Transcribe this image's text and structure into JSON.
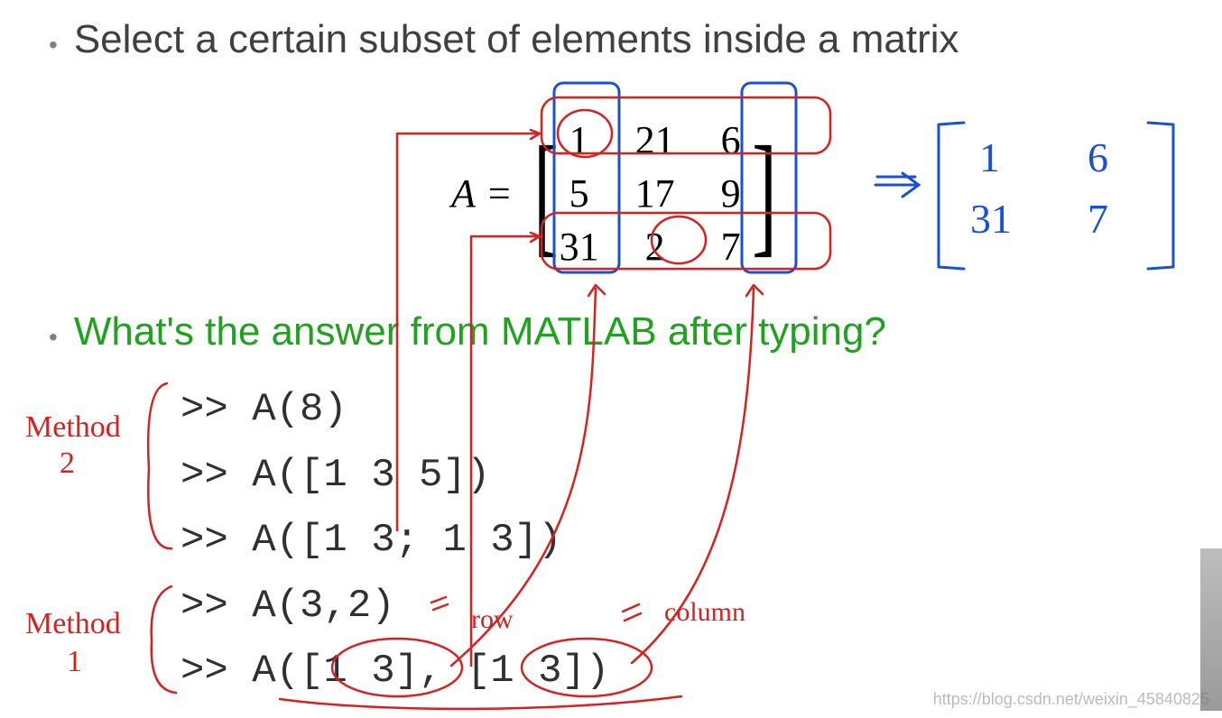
{
  "colors": {
    "title": "#404040",
    "question": "#1fa31f",
    "bullet": "#808080",
    "code": "#303030",
    "ink_red": "#d82020",
    "ink_blue": "#1a4fd8",
    "watermark": "rgba(120,120,120,0.5)",
    "background": "#ffffff"
  },
  "fontsizes": {
    "title": 44,
    "question": 44,
    "code": 44,
    "matrix": 44
  },
  "bullets": {
    "title": "Select a certain subset of elements inside a matrix",
    "question": "What's the answer from MATLAB after typing?"
  },
  "matrix": {
    "name": "A",
    "eq": "=",
    "rows": [
      [
        "1",
        "21",
        "6"
      ],
      [
        "5",
        "17",
        "9"
      ],
      [
        "31",
        "2",
        "7"
      ]
    ]
  },
  "result_matrix_hand": {
    "rows": [
      [
        "1",
        "6"
      ],
      [
        "31",
        "7"
      ]
    ],
    "note": "handwritten in blue to the right with ⇒ arrow"
  },
  "code_lines": [
    ">> A(8)",
    ">> A([1 3 5])",
    ">> A([1 3; 1 3])",
    ">> A(3,2)",
    ">> A([1 3], [1 3])"
  ],
  "hand_labels": {
    "method2": "Method 2",
    "method1": "Method 1",
    "row": "row",
    "column": "column",
    "arrow": "⇒"
  },
  "watermark": "https://blog.csdn.net/weixin_45840825"
}
